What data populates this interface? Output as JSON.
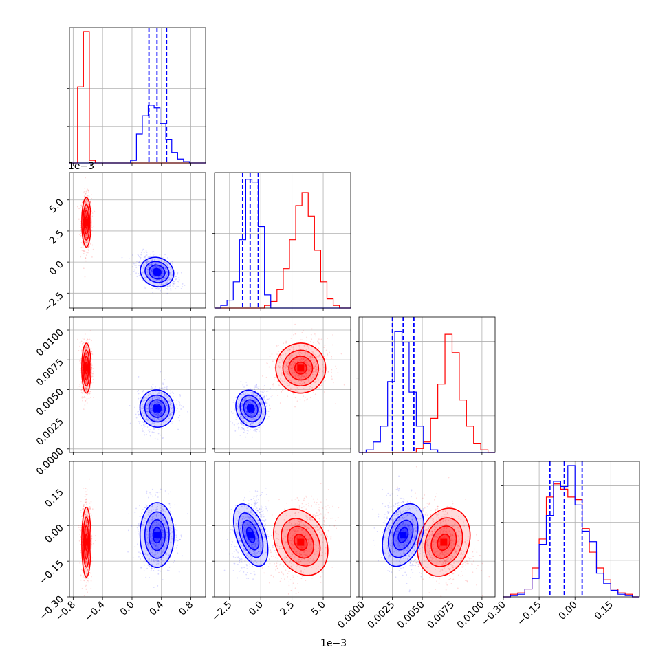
{
  "chart_data": {
    "type": "corner",
    "title": "",
    "exponent_labels": {
      "row1_y": "1e−3",
      "col1_x": "1e−3"
    },
    "params": [
      {
        "range": [
          -0.85,
          1.0
        ],
        "ticks": [
          {
            "v": -0.8,
            "label": "−0.8"
          },
          {
            "v": -0.4,
            "label": "−0.4"
          },
          {
            "v": 0.0,
            "label": "0.0"
          },
          {
            "v": 0.4,
            "label": "0.4"
          },
          {
            "v": 0.8,
            "label": "0.8"
          }
        ]
      },
      {
        "range": [
          -3.7,
          7.2
        ],
        "ticks": [
          {
            "v": -2.5,
            "label": "−2.5"
          },
          {
            "v": 0.0,
            "label": "0.0"
          },
          {
            "v": 2.5,
            "label": "2.5"
          },
          {
            "v": 5.0,
            "label": "5.0"
          }
        ]
      },
      {
        "range": [
          -0.0003,
          0.0111
        ],
        "ticks": [
          {
            "v": 0.0,
            "label": "0.0000"
          },
          {
            "v": 0.0025,
            "label": "0.0025"
          },
          {
            "v": 0.005,
            "label": "0.0050"
          },
          {
            "v": 0.0075,
            "label": "0.0075"
          },
          {
            "v": 0.01,
            "label": "0.0100"
          }
        ]
      },
      {
        "range": [
          -0.3,
          0.27
        ],
        "ticks": [
          {
            "v": -0.3,
            "label": "−0.30"
          },
          {
            "v": -0.15,
            "label": "−0.15"
          },
          {
            "v": 0.0,
            "label": "0.00"
          },
          {
            "v": 0.15,
            "label": "0.15"
          }
        ]
      }
    ],
    "series": [
      {
        "color": "#ff0000",
        "mean": [
          -0.62,
          3.2,
          0.0068,
          -0.07
        ],
        "sd": [
          0.03,
          0.95,
          0.001,
          0.07
        ]
      },
      {
        "color": "#0000ff",
        "mean": [
          0.34,
          -0.8,
          0.0034,
          -0.04
        ],
        "sd": [
          0.11,
          0.55,
          0.00075,
          0.065
        ]
      }
    ],
    "quantile_lines": [
      {
        "param": 0,
        "color": "#0000ff",
        "values": [
          0.23,
          0.34,
          0.47
        ]
      },
      {
        "param": 1,
        "color": "#0000ff",
        "values": [
          -1.45,
          -0.85,
          -0.2
        ]
      },
      {
        "param": 2,
        "color": "#0000ff",
        "values": [
          0.0025,
          0.0034,
          0.0043
        ]
      },
      {
        "param": 3,
        "color": "#0000ff",
        "values": [
          -0.105,
          -0.045,
          0.03
        ]
      }
    ],
    "histograms": [
      {
        "param": 0,
        "bin_edges": [
          -0.9,
          -0.82,
          -0.74,
          -0.66,
          -0.58,
          -0.5,
          -0.42,
          -0.34,
          -0.26,
          -0.18,
          -0.1,
          -0.02,
          0.06,
          0.14,
          0.22,
          0.3,
          0.38,
          0.46,
          0.54,
          0.62,
          0.7,
          0.78,
          0.86,
          0.94,
          1.0
        ],
        "red": [
          0,
          0,
          0.58,
          1.0,
          0.02,
          0,
          0,
          0,
          0,
          0,
          0,
          0,
          0,
          0,
          0,
          0,
          0,
          0,
          0,
          0,
          0,
          0,
          0,
          0
        ],
        "blue": [
          0,
          0,
          0,
          0,
          0,
          0,
          0,
          0,
          0,
          0,
          0,
          0.02,
          0.22,
          0.36,
          0.44,
          0.42,
          0.3,
          0.18,
          0.08,
          0.03,
          0.01,
          0,
          0,
          0
        ]
      },
      {
        "param": 1,
        "bin_edges": [
          -3.7,
          -3.2,
          -2.7,
          -2.2,
          -1.7,
          -1.2,
          -0.7,
          -0.2,
          0.3,
          0.8,
          1.3,
          1.8,
          2.3,
          2.8,
          3.3,
          3.8,
          4.3,
          4.8,
          5.3,
          5.8,
          6.3,
          6.8,
          7.2
        ],
        "red": [
          0,
          0,
          0,
          0,
          0,
          0,
          0,
          0,
          0.02,
          0.05,
          0.14,
          0.3,
          0.52,
          0.78,
          0.88,
          0.7,
          0.44,
          0.2,
          0.07,
          0.02,
          0,
          0
        ],
        "blue": [
          0,
          0.02,
          0.06,
          0.2,
          0.52,
          0.98,
          0.96,
          0.62,
          0.1,
          0,
          0,
          0,
          0,
          0,
          0,
          0,
          0,
          0,
          0,
          0,
          0,
          0
        ]
      },
      {
        "param": 2,
        "bin_edges": [
          -0.0003,
          0.0003,
          0.0009,
          0.0015,
          0.0021,
          0.0027,
          0.0033,
          0.0039,
          0.0045,
          0.0051,
          0.0057,
          0.0063,
          0.0069,
          0.0075,
          0.0081,
          0.0087,
          0.0093,
          0.0099,
          0.0105,
          0.0111
        ],
        "red": [
          0,
          0,
          0,
          0,
          0,
          0,
          0,
          0,
          0.03,
          0.08,
          0.26,
          0.52,
          0.9,
          0.76,
          0.4,
          0.2,
          0.07,
          0.02,
          0
        ],
        "blue": [
          0,
          0.02,
          0.08,
          0.2,
          0.54,
          0.92,
          0.84,
          0.46,
          0.2,
          0.07,
          0.02,
          0,
          0,
          0,
          0,
          0,
          0,
          0,
          0
        ]
      },
      {
        "param": 3,
        "bin_edges": [
          -0.3,
          -0.27,
          -0.24,
          -0.21,
          -0.18,
          -0.15,
          -0.12,
          -0.09,
          -0.06,
          -0.03,
          0.0,
          0.03,
          0.06,
          0.09,
          0.12,
          0.15,
          0.18,
          0.21,
          0.24,
          0.27
        ],
        "red": [
          0,
          0.02,
          0.03,
          0.06,
          0.22,
          0.44,
          0.76,
          0.86,
          0.82,
          0.76,
          0.74,
          0.52,
          0.34,
          0.22,
          0.13,
          0.06,
          0.03,
          0.02,
          0
        ],
        "blue": [
          0,
          0.01,
          0.02,
          0.06,
          0.14,
          0.4,
          0.62,
          0.88,
          0.84,
          1.0,
          0.7,
          0.5,
          0.42,
          0.18,
          0.1,
          0.05,
          0.02,
          0.01,
          0
        ]
      }
    ],
    "grid": true,
    "legend": "none"
  }
}
